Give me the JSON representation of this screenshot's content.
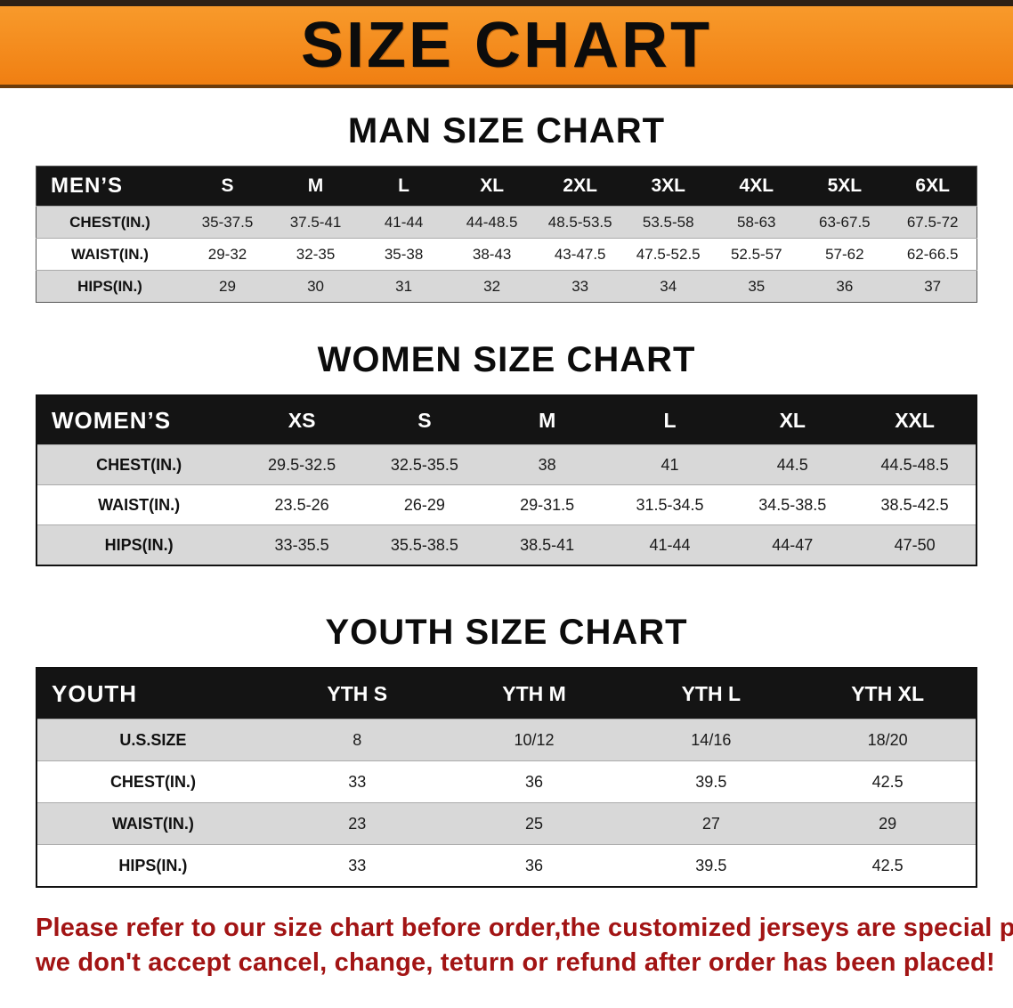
{
  "banner": {
    "title": "SIZE CHART"
  },
  "colors": {
    "banner_orange": "#f5871c",
    "table_header_black": "#141414",
    "row_stripe_gray": "#d8d8d8",
    "disclaimer_red": "#a21414"
  },
  "sections": {
    "men": {
      "heading": "MAN SIZE CHART",
      "table": {
        "header": [
          "MEN’S",
          "S",
          "M",
          "L",
          "XL",
          "2XL",
          "3XL",
          "4XL",
          "5XL",
          "6XL"
        ],
        "rows": [
          [
            "CHEST(IN.)",
            "35-37.5",
            "37.5-41",
            "41-44",
            "44-48.5",
            "48.5-53.5",
            "53.5-58",
            "58-63",
            "63-67.5",
            "67.5-72"
          ],
          [
            "WAIST(IN.)",
            "29-32",
            "32-35",
            "35-38",
            "38-43",
            "43-47.5",
            "47.5-52.5",
            "52.5-57",
            "57-62",
            "62-66.5"
          ],
          [
            "HIPS(IN.)",
            "29",
            "30",
            "31",
            "32",
            "33",
            "34",
            "35",
            "36",
            "37"
          ]
        ]
      }
    },
    "women": {
      "heading": "WOMEN SIZE CHART",
      "table": {
        "header": [
          "WOMEN’S",
          "XS",
          "S",
          "M",
          "L",
          "XL",
          "XXL"
        ],
        "rows": [
          [
            "CHEST(IN.)",
            "29.5-32.5",
            "32.5-35.5",
            "38",
            "41",
            "44.5",
            "44.5-48.5"
          ],
          [
            "WAIST(IN.)",
            "23.5-26",
            "26-29",
            "29-31.5",
            "31.5-34.5",
            "34.5-38.5",
            "38.5-42.5"
          ],
          [
            "HIPS(IN.)",
            "33-35.5",
            "35.5-38.5",
            "38.5-41",
            "41-44",
            "44-47",
            "47-50"
          ]
        ]
      }
    },
    "youth": {
      "heading": "YOUTH SIZE CHART",
      "table": {
        "header": [
          "YOUTH",
          "YTH S",
          "YTH M",
          "YTH L",
          "YTH XL"
        ],
        "rows": [
          [
            "U.S.SIZE",
            "8",
            "10/12",
            "14/16",
            "18/20"
          ],
          [
            "CHEST(IN.)",
            "33",
            "36",
            "39.5",
            "42.5"
          ],
          [
            "WAIST(IN.)",
            "23",
            "25",
            "27",
            "29"
          ],
          [
            "HIPS(IN.)",
            "33",
            "36",
            "39.5",
            "42.5"
          ]
        ]
      }
    }
  },
  "disclaimer": {
    "line1": "Please refer to our size chart before order,the customized jerseys are special products,",
    "line2": "we don't accept cancel, change, teturn or refund after order has been placed!"
  }
}
